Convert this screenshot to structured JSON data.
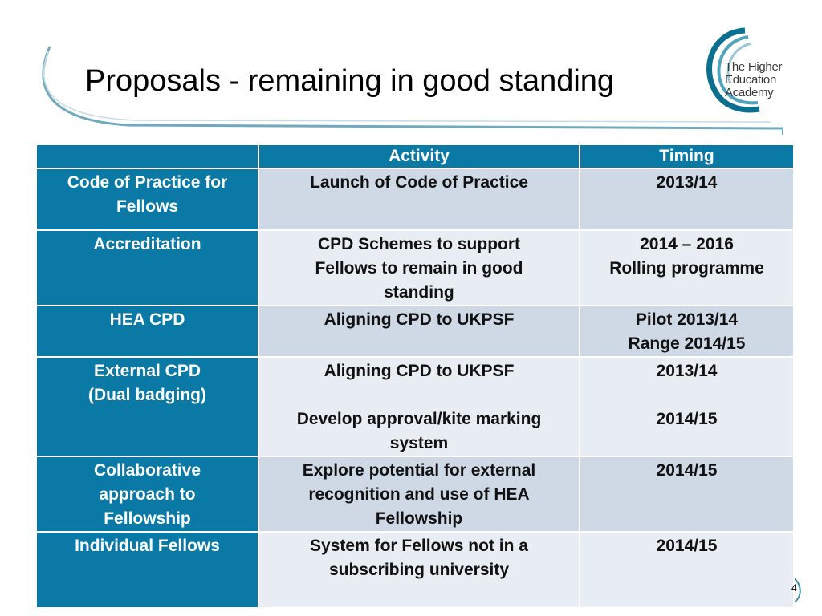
{
  "slide": {
    "title": "Proposals - remaining in good standing",
    "page_number": "4"
  },
  "logo": {
    "line1": "The Higher",
    "line2": "Education",
    "line3": "Academy"
  },
  "table": {
    "headers": [
      "",
      "Activity",
      "Timing"
    ],
    "rows": [
      {
        "label": [
          "Code of Practice for",
          "Fellows"
        ],
        "activity": [
          "Launch of Code of Practice"
        ],
        "timing": [
          "2013/14"
        ]
      },
      {
        "label": [
          "Accreditation"
        ],
        "activity": [
          "CPD Schemes to support",
          "Fellows to remain in good",
          "standing"
        ],
        "timing": [
          "2014 – 2016",
          "Rolling programme"
        ]
      },
      {
        "label": [
          "HEA CPD"
        ],
        "activity": [
          "Aligning CPD to UKPSF"
        ],
        "timing": [
          "Pilot 2013/14",
          "Range 2014/15"
        ]
      },
      {
        "label": [
          "External CPD",
          "(Dual badging)"
        ],
        "activity": [
          "Aligning CPD to UKPSF",
          "",
          "Develop approval/kite marking",
          "system"
        ],
        "timing": [
          "2013/14",
          "",
          "2014/15"
        ]
      },
      {
        "label": [
          "Collaborative",
          "approach to",
          "Fellowship"
        ],
        "activity": [
          "Explore potential for external",
          "recognition and use of HEA",
          "Fellowship"
        ],
        "timing": [
          "2014/15"
        ]
      },
      {
        "label": [
          "Individual Fellows"
        ],
        "activity": [
          "System for Fellows not in a",
          "subscribing university"
        ],
        "timing": [
          "2014/15"
        ]
      }
    ]
  },
  "colors": {
    "header_blue": "#0b79a6",
    "row_light": "#cfd9e6",
    "row_pale": "#e8edf3",
    "swoosh": "#3c8fa8"
  }
}
